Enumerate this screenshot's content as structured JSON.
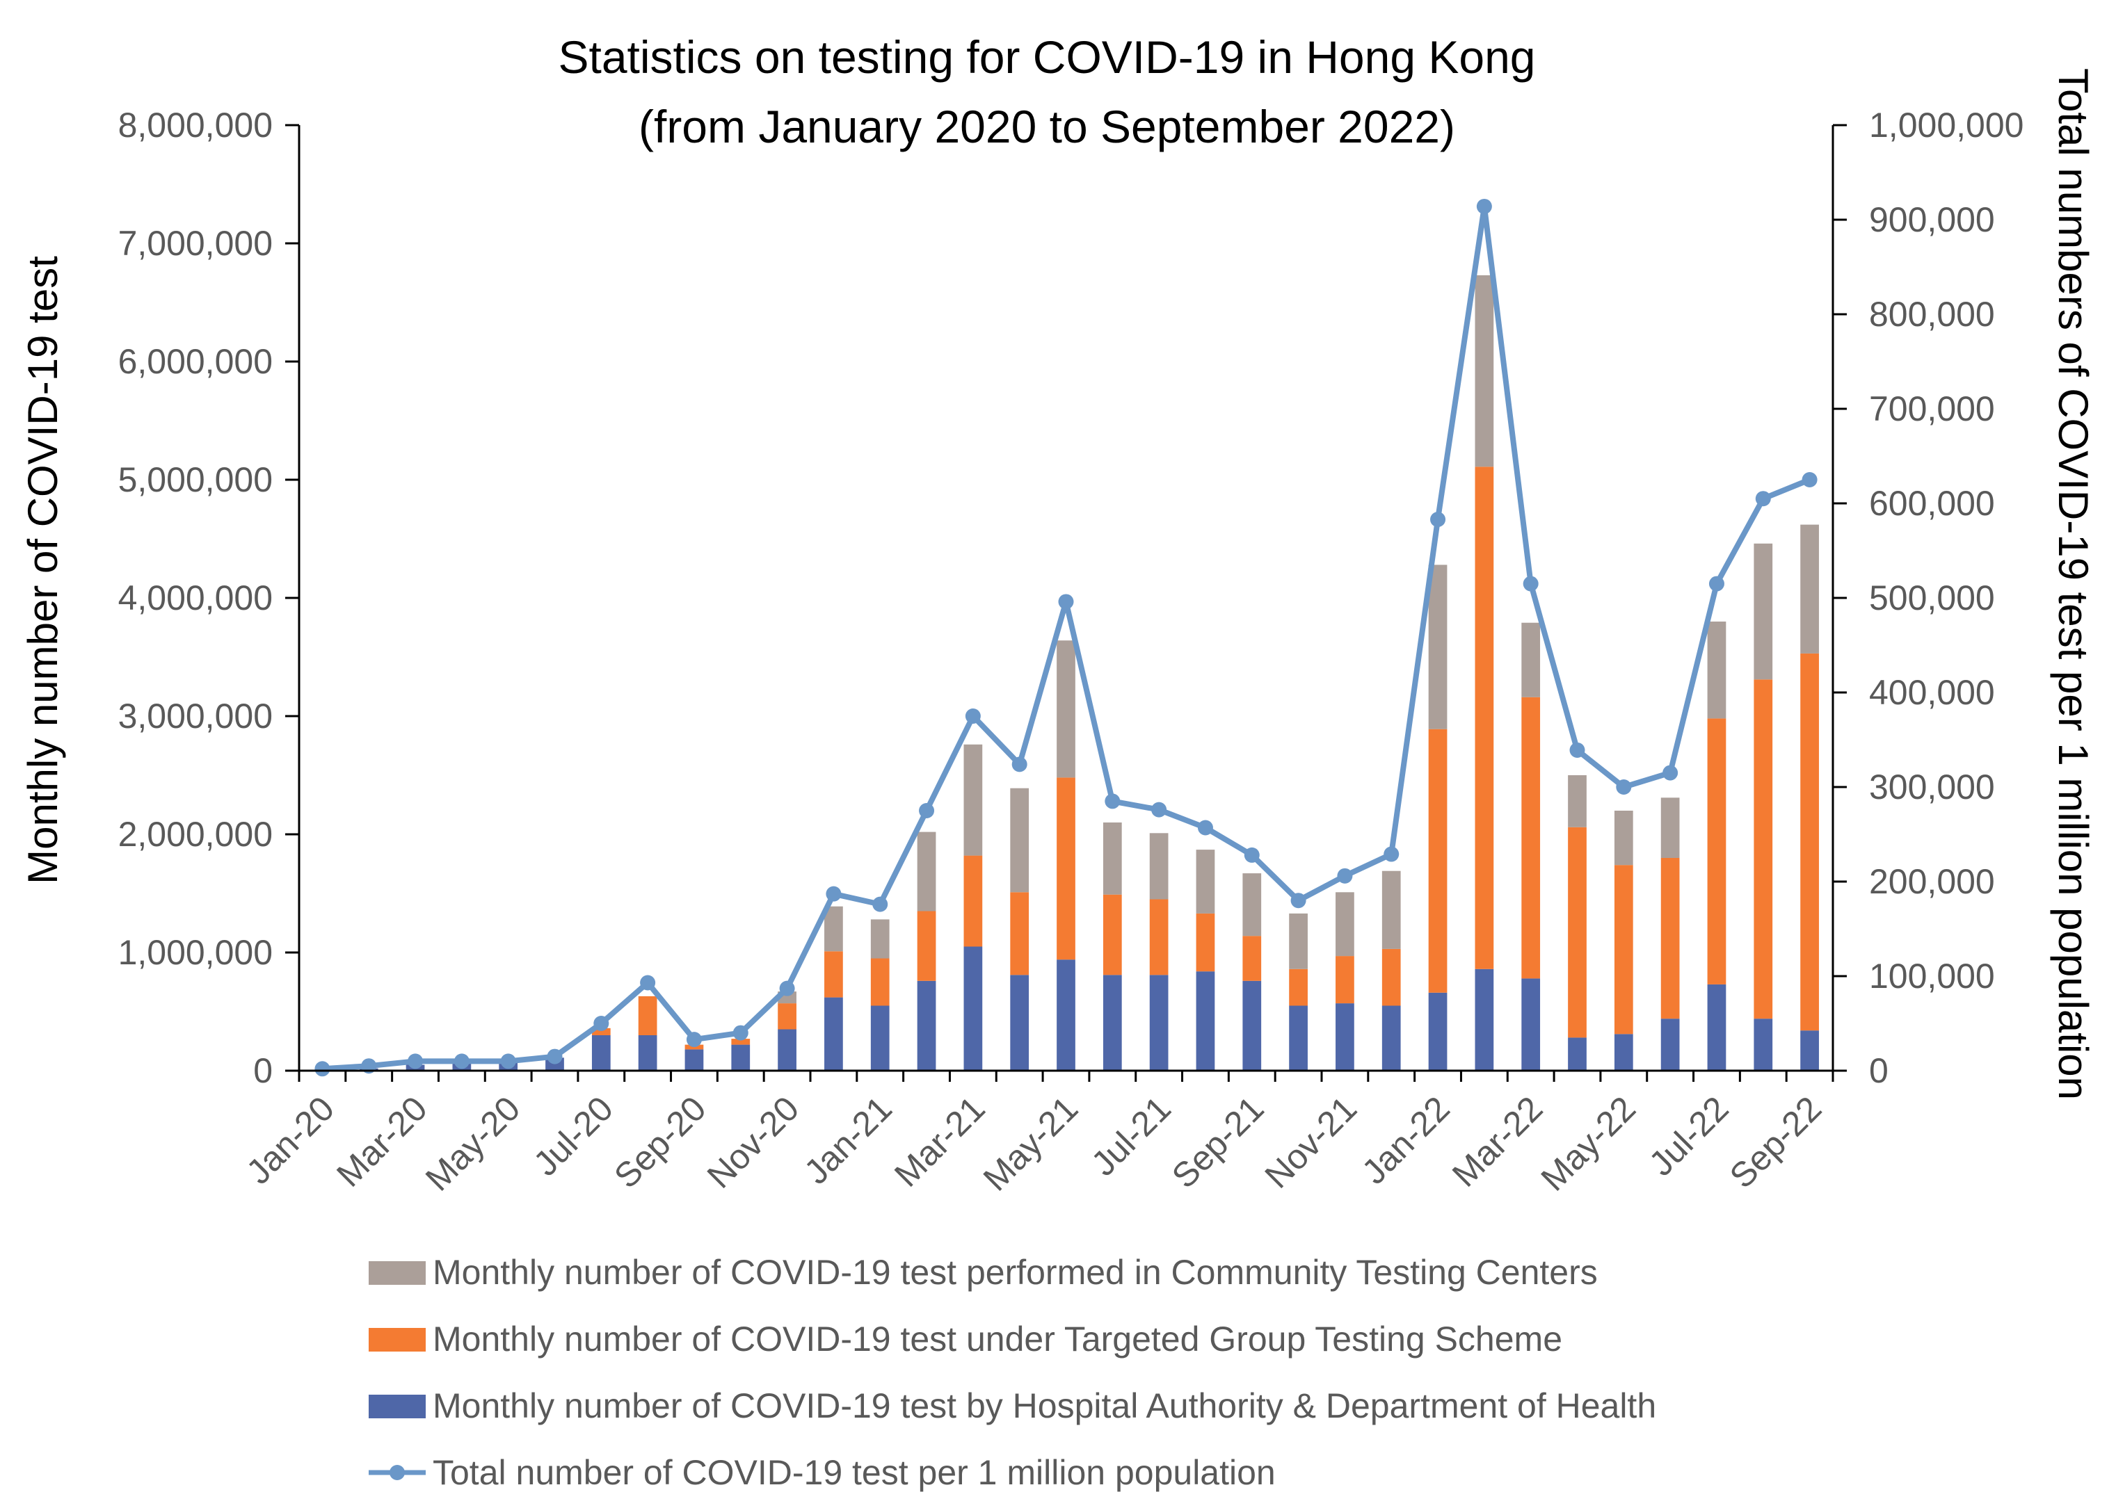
{
  "chart_data": {
    "type": "bar",
    "title": "Statistics on testing for COVID-19 in Hong Kong",
    "subtitle": "(from January 2020 to September 2022)",
    "ylabel": "Monthly number of COVID-19 test",
    "y2label": "Total numbers of COVID-19 test per 1 million population",
    "ylim": [
      0,
      8000000
    ],
    "y2lim": [
      0,
      1000000
    ],
    "y_ticks": [
      "0",
      "1,000,000",
      "2,000,000",
      "3,000,000",
      "4,000,000",
      "5,000,000",
      "6,000,000",
      "7,000,000",
      "8,000,000"
    ],
    "y2_ticks": [
      "0",
      "100,000",
      "200,000",
      "300,000",
      "400,000",
      "500,000",
      "600,000",
      "700,000",
      "800,000",
      "900,000",
      "1,000,000"
    ],
    "x_tick_labels": [
      "Jan-20",
      "Mar-20",
      "May-20",
      "Jul-20",
      "Sep-20",
      "Nov-20",
      "Jan-21",
      "Mar-21",
      "May-21",
      "Jul-21",
      "Sep-21",
      "Nov-21",
      "Jan-22",
      "Mar-22",
      "May-22",
      "Jul-22",
      "Sep-22"
    ],
    "categories": [
      "Jan-20",
      "Feb-20",
      "Mar-20",
      "Apr-20",
      "May-20",
      "Jun-20",
      "Jul-20",
      "Aug-20",
      "Sep-20",
      "Oct-20",
      "Nov-20",
      "Dec-20",
      "Jan-21",
      "Feb-21",
      "Mar-21",
      "Apr-21",
      "May-21",
      "Jun-21",
      "Jul-21",
      "Aug-21",
      "Sep-21",
      "Oct-21",
      "Nov-21",
      "Dec-21",
      "Jan-22",
      "Feb-22",
      "Mar-22",
      "Apr-22",
      "May-22",
      "Jun-22",
      "Jul-22",
      "Aug-22",
      "Sep-22"
    ],
    "series": [
      {
        "name": "Monthly number of COVID-19 test by Hospital Authority & Department of Health",
        "type": "bar",
        "stack": "monthly",
        "color": "#4f67a8",
        "values": [
          5000,
          20000,
          50000,
          60000,
          70000,
          110000,
          300000,
          300000,
          180000,
          220000,
          350000,
          620000,
          550000,
          760000,
          1050000,
          810000,
          940000,
          810000,
          810000,
          840000,
          760000,
          550000,
          570000,
          550000,
          660000,
          860000,
          780000,
          280000,
          310000,
          440000,
          730000,
          440000,
          340000
        ]
      },
      {
        "name": "Monthly number of COVID-19 test under Targeted Group Testing Scheme",
        "type": "bar",
        "stack": "monthly",
        "color": "#f47b32",
        "values": [
          0,
          0,
          0,
          0,
          0,
          0,
          60000,
          330000,
          40000,
          50000,
          220000,
          390000,
          400000,
          590000,
          770000,
          700000,
          1540000,
          680000,
          640000,
          490000,
          380000,
          310000,
          400000,
          480000,
          2230000,
          4250000,
          2380000,
          1780000,
          1430000,
          1360000,
          2250000,
          2870000,
          3190000
        ]
      },
      {
        "name": "Monthly number of COVID-19 test performed in Community Testing Centers",
        "type": "bar",
        "stack": "monthly",
        "color": "#ab9f99",
        "values": [
          0,
          0,
          0,
          0,
          0,
          0,
          0,
          0,
          0,
          0,
          100000,
          380000,
          330000,
          670000,
          940000,
          880000,
          1160000,
          610000,
          560000,
          540000,
          530000,
          470000,
          540000,
          660000,
          1390000,
          1620000,
          630000,
          440000,
          460000,
          510000,
          820000,
          1150000,
          1090000
        ]
      },
      {
        "name": "Total number of COVID-19 test per 1 million population",
        "type": "line",
        "axis": "right",
        "color": "#6a97c8",
        "values": [
          2000,
          5000,
          10000,
          10000,
          10000,
          15000,
          50000,
          93000,
          33000,
          40000,
          87000,
          187000,
          176000,
          275000,
          375000,
          324000,
          496000,
          285000,
          276000,
          257000,
          228000,
          180000,
          206000,
          229000,
          583000,
          914000,
          515000,
          339000,
          300000,
          315000,
          515000,
          605000,
          625000
        ]
      }
    ],
    "legend_position": "bottom",
    "grid": false
  }
}
